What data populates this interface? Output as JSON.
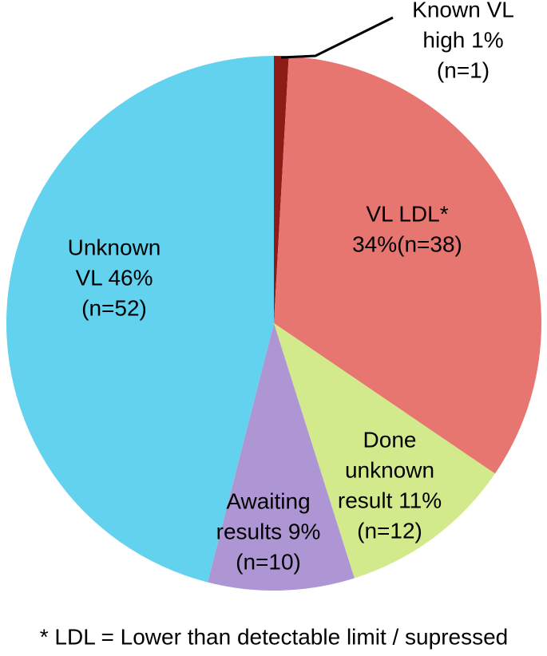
{
  "chart_data": {
    "type": "pie",
    "labels": [
      [
        "Known VL",
        "high 1%",
        "(n=1)"
      ],
      [
        "VL LDL*",
        "34%(n=38)"
      ],
      [
        "Done",
        "unknown",
        "result 11%",
        "(n=12)"
      ],
      [
        "Awaiting",
        "results 9%",
        "(n=10)"
      ],
      [
        "Unknown",
        "VL 46%",
        "(n=52)"
      ]
    ],
    "values": [
      1,
      34,
      11,
      9,
      46
    ],
    "counts": [
      1,
      38,
      12,
      10,
      52
    ],
    "colors": [
      "#8e1b16",
      "#e77570",
      "#d3ea8c",
      "#ae96d4",
      "#62d2ee"
    ],
    "footnote": "* LDL = Lower than detectable limit / supressed"
  }
}
